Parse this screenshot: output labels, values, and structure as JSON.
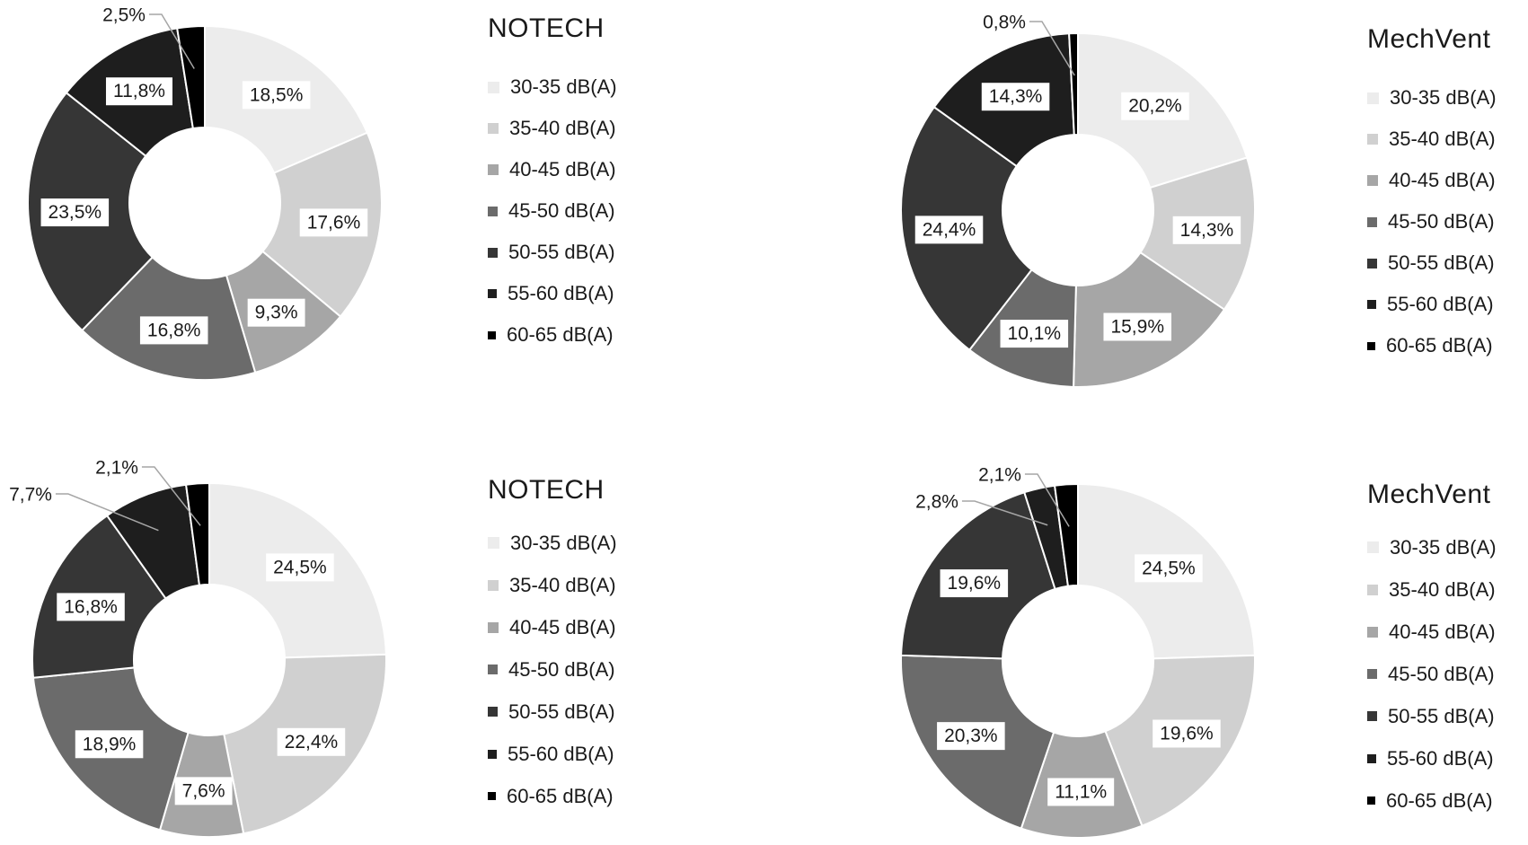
{
  "figure": {
    "background": "#ffffff"
  },
  "colors": {
    "slice_palette": [
      "#ececec",
      "#d0d0d0",
      "#a6a6a6",
      "#6b6b6b",
      "#363636",
      "#1e1e1e",
      "#000000"
    ],
    "label_text": "#1a1a1a",
    "label_box_bg": "#ffffff",
    "slice_border": "#ffffff",
    "leader_line": "#a6a6a6",
    "legend_text": "#1a1a1a",
    "title_text": "#1a1a1a"
  },
  "legend": {
    "labels": [
      "30-35 dB(A)",
      "35-40 dB(A)",
      "40-45 dB(A)",
      "45-50 dB(A)",
      "50-55 dB(A)",
      "55-60 dB(A)",
      "60-65 dB(A)"
    ]
  },
  "chart_data": [
    {
      "id": "top-left",
      "type": "pie",
      "subtype": "donut",
      "title": "NOTECH",
      "legend_position": "right",
      "start_angle_deg": 0,
      "direction": "clockwise",
      "categories": [
        "30-35 dB(A)",
        "35-40 dB(A)",
        "40-45 dB(A)",
        "45-50 dB(A)",
        "50-55 dB(A)",
        "55-60 dB(A)",
        "60-65 dB(A)"
      ],
      "values": [
        18.5,
        17.6,
        9.3,
        16.8,
        23.5,
        11.8,
        2.5
      ],
      "labels": [
        "18,5%",
        "17,6%",
        "9,3%",
        "16,8%",
        "23,5%",
        "11,8%",
        "2,5%"
      ],
      "outside_label_indices": [
        6
      ]
    },
    {
      "id": "top-right",
      "type": "pie",
      "subtype": "donut",
      "title": "MechVent",
      "legend_position": "right",
      "start_angle_deg": 0,
      "direction": "clockwise",
      "categories": [
        "30-35 dB(A)",
        "35-40 dB(A)",
        "40-45 dB(A)",
        "45-50 dB(A)",
        "50-55 dB(A)",
        "55-60 dB(A)",
        "60-65 dB(A)"
      ],
      "values": [
        20.2,
        14.3,
        15.9,
        10.1,
        24.4,
        14.3,
        0.8
      ],
      "labels": [
        "20,2%",
        "14,3%",
        "15,9%",
        "10,1%",
        "24,4%",
        "14,3%",
        "0,8%"
      ],
      "outside_label_indices": [
        6
      ]
    },
    {
      "id": "bottom-left",
      "type": "pie",
      "subtype": "donut",
      "title": "NOTECH",
      "legend_position": "right",
      "start_angle_deg": 0,
      "direction": "clockwise",
      "categories": [
        "30-35 dB(A)",
        "35-40 dB(A)",
        "40-45 dB(A)",
        "45-50 dB(A)",
        "50-55 dB(A)",
        "55-60 dB(A)",
        "60-65 dB(A)"
      ],
      "values": [
        24.5,
        22.4,
        7.6,
        18.9,
        16.8,
        7.7,
        2.1
      ],
      "labels": [
        "24,5%",
        "22,4%",
        "7,6%",
        "18,9%",
        "16,8%",
        "7,7%",
        "2,1%"
      ],
      "outside_label_indices": [
        5,
        6
      ]
    },
    {
      "id": "bottom-right",
      "type": "pie",
      "subtype": "donut",
      "title": "MechVent",
      "legend_position": "right",
      "start_angle_deg": 0,
      "direction": "clockwise",
      "categories": [
        "30-35 dB(A)",
        "35-40 dB(A)",
        "40-45 dB(A)",
        "45-50 dB(A)",
        "50-55 dB(A)",
        "55-60 dB(A)",
        "60-65 dB(A)"
      ],
      "values": [
        24.5,
        19.6,
        11.1,
        20.3,
        19.6,
        2.8,
        2.1
      ],
      "labels": [
        "24,5%",
        "19,6%",
        "11,1%",
        "20,3%",
        "19,6%",
        "2,8%",
        "2,1%"
      ],
      "outside_label_indices": [
        5,
        6
      ]
    }
  ]
}
